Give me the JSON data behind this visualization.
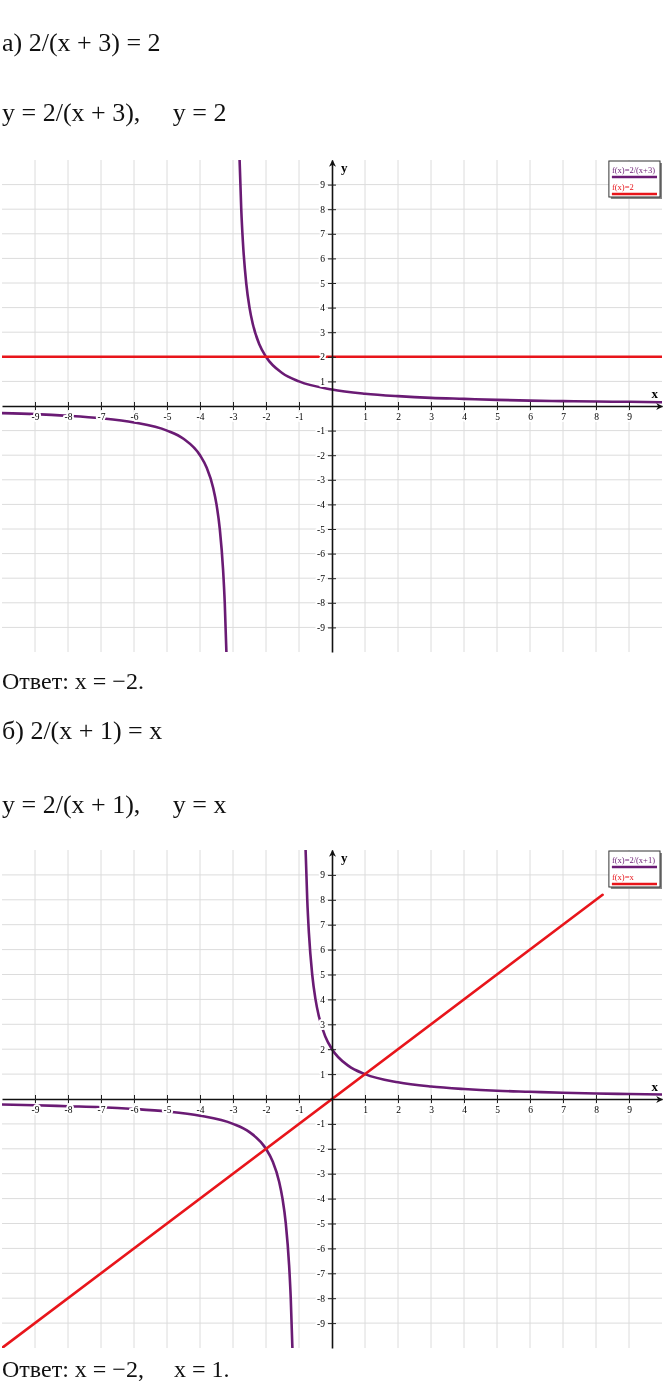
{
  "chart_data": [
    {
      "type": "line",
      "title": "а) 2/(x + 3) = 2",
      "subtitle": "y = 2/(x + 3),     y = 2",
      "annotations": [
        "Ответ: x = −2."
      ],
      "xlabel": "x",
      "ylabel": "y",
      "xlim": [
        -10,
        10
      ],
      "ylim": [
        -10,
        10
      ],
      "xticks": [
        -9,
        -8,
        -7,
        -6,
        -5,
        -4,
        -3,
        -2,
        -1,
        1,
        2,
        3,
        4,
        5,
        6,
        7,
        8,
        9
      ],
      "yticks": [
        -9,
        -8,
        -7,
        -6,
        -5,
        -4,
        -3,
        -2,
        -1,
        1,
        2,
        3,
        4,
        5,
        6,
        7,
        8,
        9
      ],
      "grid": true,
      "legend": "top right",
      "series": [
        {
          "name": "f(x)=2/(x+3)",
          "color": "#6a1b74",
          "x": [
            -10,
            -9,
            -8,
            -7,
            -6,
            -5,
            -4.5,
            -4,
            -3.8,
            -3.6,
            -3.5,
            -3.4,
            -3.3,
            -3.25,
            -3.2,
            -3,
            -2.8,
            -2.75,
            -2.7,
            -2.6,
            -2.5,
            -2.4,
            -2.2,
            -2,
            -1.5,
            -1,
            0,
            1,
            2,
            3,
            4,
            5,
            6,
            7,
            8,
            9,
            10
          ],
          "values": [
            -0.29,
            -0.33,
            -0.4,
            -0.5,
            -0.67,
            -1,
            -1.33,
            -2,
            -2.5,
            -3.33,
            -4,
            -5,
            -6.67,
            -8,
            -10,
            null,
            10,
            8,
            6.67,
            5,
            4,
            3.33,
            2.5,
            2,
            1.33,
            1,
            0.67,
            0.5,
            0.4,
            0.33,
            0.29,
            0.25,
            0.22,
            0.2,
            0.18,
            0.17,
            0.15
          ]
        },
        {
          "name": "f(x)=2",
          "color": "#e8151b",
          "x": [
            -10,
            10
          ],
          "values": [
            2,
            2
          ]
        }
      ]
    },
    {
      "type": "line",
      "title": "б) 2/(x + 1) = x",
      "subtitle": "y = 2/(x + 1),     y = x",
      "annotations": [
        "Ответ: x = −2,     x = 1."
      ],
      "xlabel": "x",
      "ylabel": "y",
      "xlim": [
        -10,
        10
      ],
      "ylim": [
        -10,
        10
      ],
      "xticks": [
        -9,
        -8,
        -7,
        -6,
        -5,
        -4,
        -3,
        -2,
        -1,
        1,
        2,
        3,
        4,
        5,
        6,
        7,
        8,
        9
      ],
      "yticks": [
        -9,
        -8,
        -7,
        -6,
        -5,
        -4,
        -3,
        -2,
        -1,
        1,
        2,
        3,
        4,
        5,
        6,
        7,
        8,
        9
      ],
      "grid": true,
      "legend": "top right",
      "series": [
        {
          "name": "f(x)=2/(x+1)",
          "color": "#6a1b74",
          "x": [
            -10,
            -9,
            -8,
            -7,
            -6,
            -5,
            -4,
            -3,
            -2.5,
            -2,
            -1.8,
            -1.6,
            -1.5,
            -1.4,
            -1.3,
            -1.25,
            -1.2,
            -1,
            -0.8,
            -0.75,
            -0.7,
            -0.6,
            -0.5,
            -0.4,
            -0.2,
            0,
            0.5,
            1,
            2,
            3,
            4,
            5,
            6,
            7,
            8,
            9,
            10
          ],
          "values": [
            -0.22,
            -0.25,
            -0.29,
            -0.33,
            -0.4,
            -0.5,
            -0.67,
            -1,
            -1.33,
            -2,
            -2.5,
            -3.33,
            -4,
            -5,
            -6.67,
            -8,
            -10,
            null,
            10,
            8,
            6.67,
            5,
            4,
            3.33,
            2.5,
            2,
            1.33,
            1,
            0.67,
            0.5,
            0.4,
            0.33,
            0.29,
            0.25,
            0.22,
            0.2,
            0.18
          ]
        },
        {
          "name": "f(x)=x",
          "color": "#e8151b",
          "x": [
            -10,
            8.2
          ],
          "values": [
            -10,
            8.2
          ]
        }
      ]
    }
  ]
}
